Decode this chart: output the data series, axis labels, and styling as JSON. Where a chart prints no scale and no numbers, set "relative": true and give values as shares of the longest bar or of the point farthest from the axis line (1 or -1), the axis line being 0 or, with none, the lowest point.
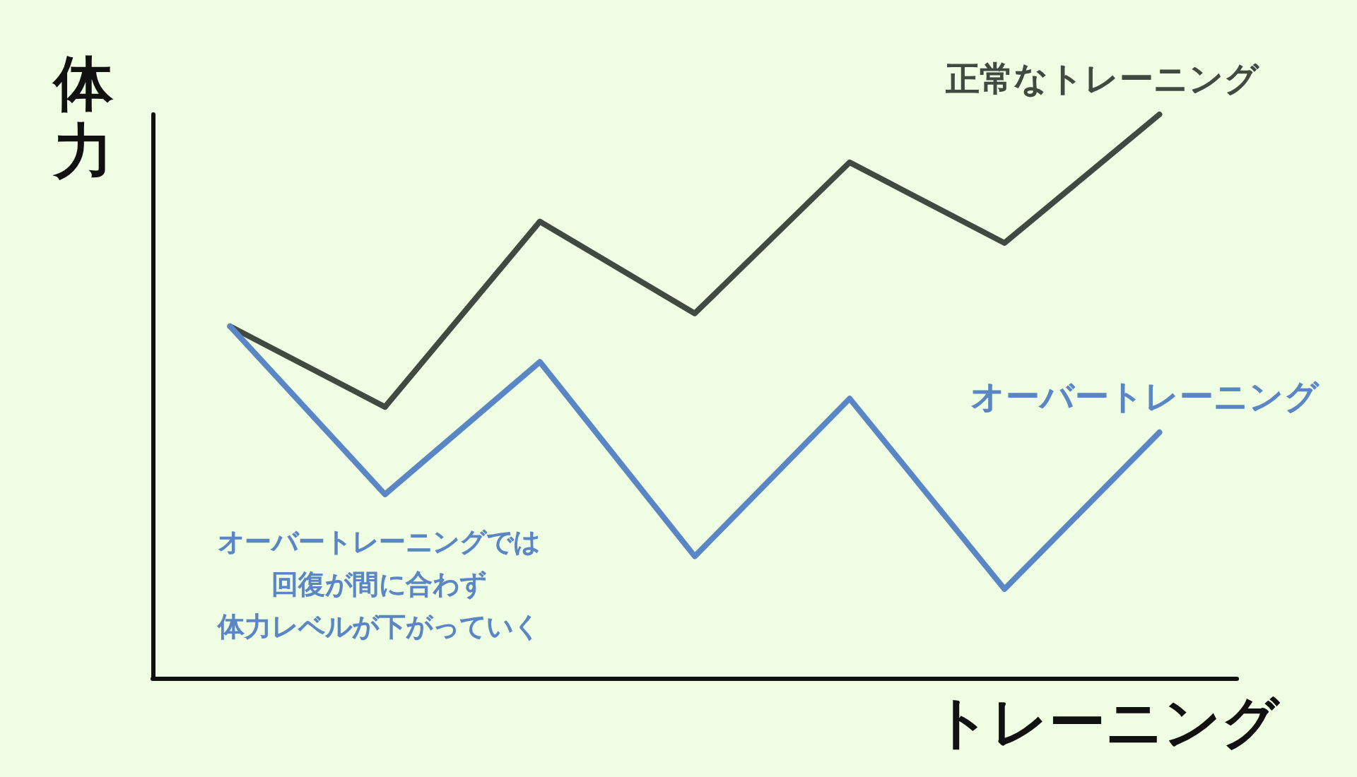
{
  "chart_data": {
    "type": "line",
    "relative": true,
    "xlabel": "トレーニング",
    "ylabel": "体力",
    "categories": [
      null,
      null,
      null,
      null,
      null,
      null,
      null
    ],
    "series": [
      {
        "name": "正常なトレーニング",
        "color": "#404a40",
        "values": [
          0.624,
          0.481,
          0.81,
          0.647,
          0.915,
          0.772,
          1
        ]
      },
      {
        "name": "オーバートレーニング",
        "color": "#5a86c5",
        "values": [
          0.624,
          0.326,
          0.561,
          0.216,
          0.496,
          0.158,
          0.436
        ]
      }
    ],
    "annotations": [
      "オーバートレーニングでは",
      "回復が間に合わず",
      "体力レベルが下がっていく"
    ],
    "grid": false,
    "legend": false,
    "marker": "none",
    "line_style": "solid"
  }
}
